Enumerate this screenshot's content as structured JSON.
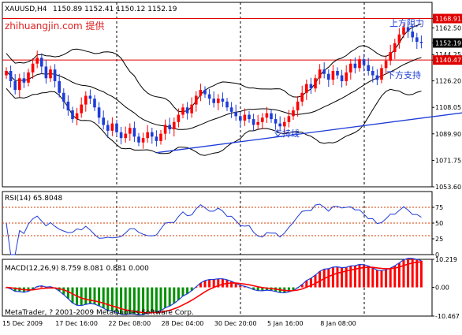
{
  "header": {
    "instrument": "XAUUSD,H4",
    "ohlc": "1150.89 1152.41 1150.12 1152.19",
    "watermark": "zhihuangjin.com 提供"
  },
  "annotations": {
    "resistance_label": "上方阻力",
    "support_label": "下方支持",
    "support_line_label": "支持线"
  },
  "footer": {
    "copyright": "MetaTrader, ? 2001-2009 MetaQuotes Software Corp."
  },
  "colors": {
    "bull": "#ff0000",
    "bear": "#1e3cd7",
    "band": "#000000",
    "resistance": "#e00000",
    "support": "#e00000",
    "trendline": "#1e3cd7",
    "rsi": "#1e3cd7",
    "macd_line": "#1e3cd7",
    "signal_line": "#ff0000",
    "hist_up": "#ff0000",
    "hist_down": "#009000",
    "grid": "#000000",
    "level": "#d23c00"
  },
  "chart_data": [
    {
      "type": "candlestick",
      "price_ticks": [
        "1168.91",
        "1162.50",
        "1152.19",
        "1144.25",
        "1140.47",
        "1126.20",
        "1108.05",
        "1089.90",
        "1071.75",
        "1053.60"
      ],
      "price_tick_values": [
        1168.91,
        1162.5,
        1152.19,
        1144.25,
        1140.47,
        1126.2,
        1108.05,
        1089.9,
        1071.75,
        1053.6
      ],
      "highlighted_ticks": [
        "1168.91",
        "1140.47"
      ],
      "current_tick": "1152.19",
      "ylim": [
        1053.6,
        1180.0
      ],
      "resistance_level": 1168.91,
      "support_level": 1140.47,
      "x_labels": [
        "15 Dec 2009",
        "17 Dec 16:00",
        "22 Dec 08:00",
        "28 Dec 04:00",
        "30 Dec 20:00",
        "5 Jan 16:00",
        "8 Jan 08:00"
      ],
      "x_label_bars": [
        0,
        16,
        32,
        48,
        64,
        80,
        96
      ],
      "support_line": {
        "from": [
          34,
          1077.0
        ],
        "to": [
          138,
          1118.0
        ]
      },
      "closes": [
        1133,
        1126,
        1120,
        1128,
        1125,
        1132,
        1138,
        1142,
        1136,
        1128,
        1134,
        1126,
        1118,
        1112,
        1106,
        1100,
        1104,
        1110,
        1116,
        1114,
        1108,
        1101,
        1096,
        1092,
        1097,
        1091,
        1087,
        1090,
        1094,
        1088,
        1084,
        1087,
        1091,
        1088,
        1085,
        1090,
        1096,
        1093,
        1098,
        1103,
        1108,
        1104,
        1110,
        1116,
        1120,
        1117,
        1114,
        1111,
        1114,
        1112,
        1108,
        1105,
        1102,
        1099,
        1103,
        1100,
        1096,
        1098,
        1101,
        1104,
        1100,
        1097,
        1095,
        1098,
        1102,
        1106,
        1112,
        1118,
        1124,
        1121,
        1128,
        1134,
        1131,
        1127,
        1133,
        1130,
        1126,
        1132,
        1138,
        1135,
        1141,
        1137,
        1133,
        1130,
        1127,
        1135,
        1140,
        1146,
        1152,
        1158,
        1163,
        1160,
        1156,
        1153,
        1152.19
      ],
      "rsi": {
        "label": "RSI(14) 65.8048",
        "period": 14,
        "value": 65.8048,
        "ylim": [
          0,
          100
        ],
        "levels": [
          75,
          50,
          30
        ],
        "ticks": [
          "75",
          "50",
          "25",
          "0"
        ],
        "tick_values": [
          75,
          50,
          25,
          0
        ]
      },
      "macd": {
        "label": "MACD(12,26,9) 8.759 8.081 0.881 0.000",
        "params": [
          12,
          26,
          9
        ],
        "values": [
          8.759,
          8.081,
          0.881,
          0.0
        ],
        "ylim": [
          -10.467,
          10.219
        ],
        "ticks": [
          "10.219",
          "0.00",
          "-10.467"
        ],
        "tick_values": [
          10.219,
          0.0,
          -10.467
        ]
      }
    }
  ]
}
